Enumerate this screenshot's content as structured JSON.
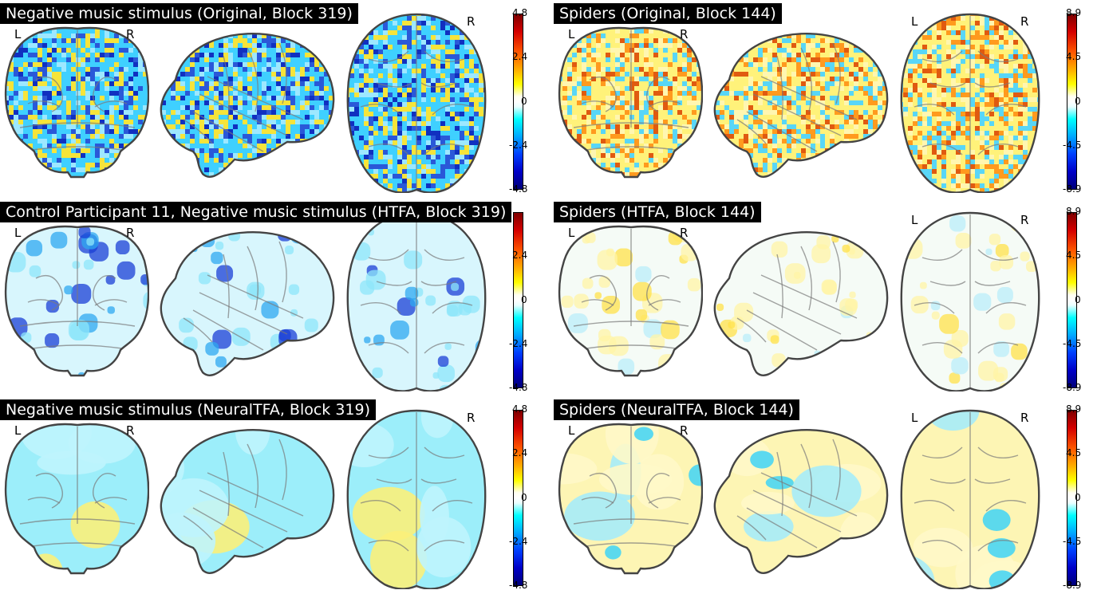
{
  "panels": [
    {
      "title": "Negative music stimulus (Original, Block 319)",
      "left_label": "L",
      "right_label": "R",
      "colorbar": {
        "max": "4.8",
        "upper": "2.4",
        "zero": "0",
        "lower": "-2.4",
        "min": "-4.8"
      },
      "dominant_activation": "blue"
    },
    {
      "title": "Spiders (Original, Block 144)",
      "left_label": "L",
      "right_label": "R",
      "colorbar": {
        "max": "8.9",
        "upper": "4.5",
        "zero": "0",
        "lower": "-4.5",
        "min": "-8.9"
      },
      "dominant_activation": "yellow"
    },
    {
      "title": "Control Participant 11, Negative music stimulus (HTFA, Block 319)",
      "left_label": "L",
      "right_label": "R",
      "colorbar": {
        "max": "",
        "upper": "2.4",
        "zero": "0",
        "lower": "-2.4",
        "min": "-4.8"
      },
      "dominant_activation": "blue"
    },
    {
      "title": "Spiders (HTFA, Block 144)",
      "left_label": "L",
      "right_label": "R",
      "colorbar": {
        "max": "8.9",
        "upper": "4.5",
        "zero": "0",
        "lower": "-4.5",
        "min": "-8.9"
      },
      "dominant_activation": "yellow"
    },
    {
      "title": "Negative music stimulus (NeuralTFA, Block 319)",
      "left_label": "L",
      "right_label": "R",
      "colorbar": {
        "max": "4.8",
        "upper": "2.4",
        "zero": "0",
        "lower": "-2.4",
        "min": "-4.8"
      },
      "dominant_activation": "blue"
    },
    {
      "title": "Spiders (NeuralTFA, Block 144)",
      "left_label": "L",
      "right_label": "R",
      "colorbar": {
        "max": "8.9",
        "upper": "4.5",
        "zero": "0",
        "lower": "-4.5",
        "min": "-8.9"
      },
      "dominant_activation": "yellow"
    }
  ],
  "colormap": {
    "positive_high": "#7f0000",
    "positive_mid": "#ffff00",
    "zero": "#ffffff",
    "negative_mid": "#00ffff",
    "negative_high": "#00007a"
  }
}
